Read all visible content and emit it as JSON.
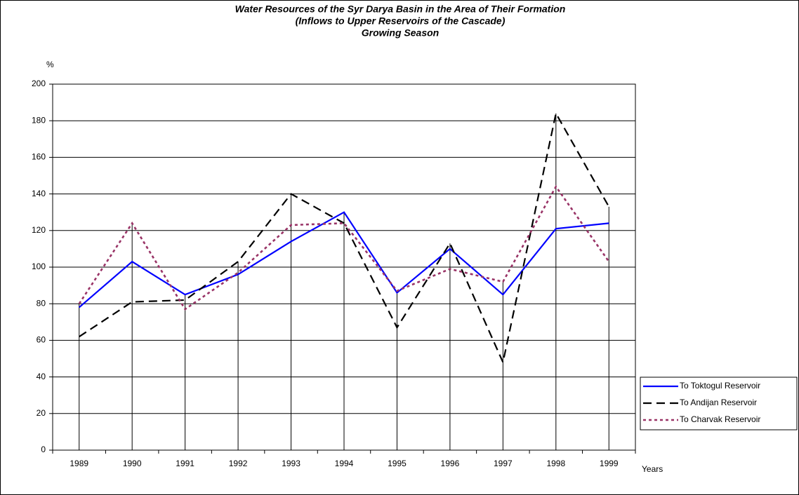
{
  "chart_data": {
    "type": "line",
    "title": [
      "Water Resources of the Syr Darya Basin in the Area of Their Formation",
      "(Inflows to Upper Reservoirs of the Cascade)",
      "Growing Season"
    ],
    "y_label": "%",
    "x_label": "Years",
    "categories": [
      "1989",
      "1990",
      "1991",
      "1992",
      "1993",
      "1994",
      "1995",
      "1996",
      "1997",
      "1998",
      "1999"
    ],
    "series": [
      {
        "name": "To Toktogul Reservoir",
        "color": "#0000ff",
        "style": "solid",
        "values": [
          78,
          103,
          85,
          96,
          114,
          130,
          86,
          110,
          85,
          121,
          124
        ]
      },
      {
        "name": "To Andijan Reservoir",
        "color": "#000000",
        "style": "dashed",
        "values": [
          62,
          81,
          82,
          103,
          140,
          124,
          67,
          113,
          48,
          184,
          133
        ]
      },
      {
        "name": "To Charvak Reservoir",
        "color": "#993366",
        "style": "dotted",
        "values": [
          80,
          124,
          77,
          97,
          123,
          124,
          87,
          99,
          92,
          144,
          103
        ]
      }
    ],
    "ylim": [
      0,
      200
    ],
    "yticks": [
      0,
      20,
      40,
      60,
      80,
      100,
      120,
      140,
      160,
      180,
      200
    ],
    "grid": true,
    "drop_lines": true,
    "legend": "lower right"
  }
}
